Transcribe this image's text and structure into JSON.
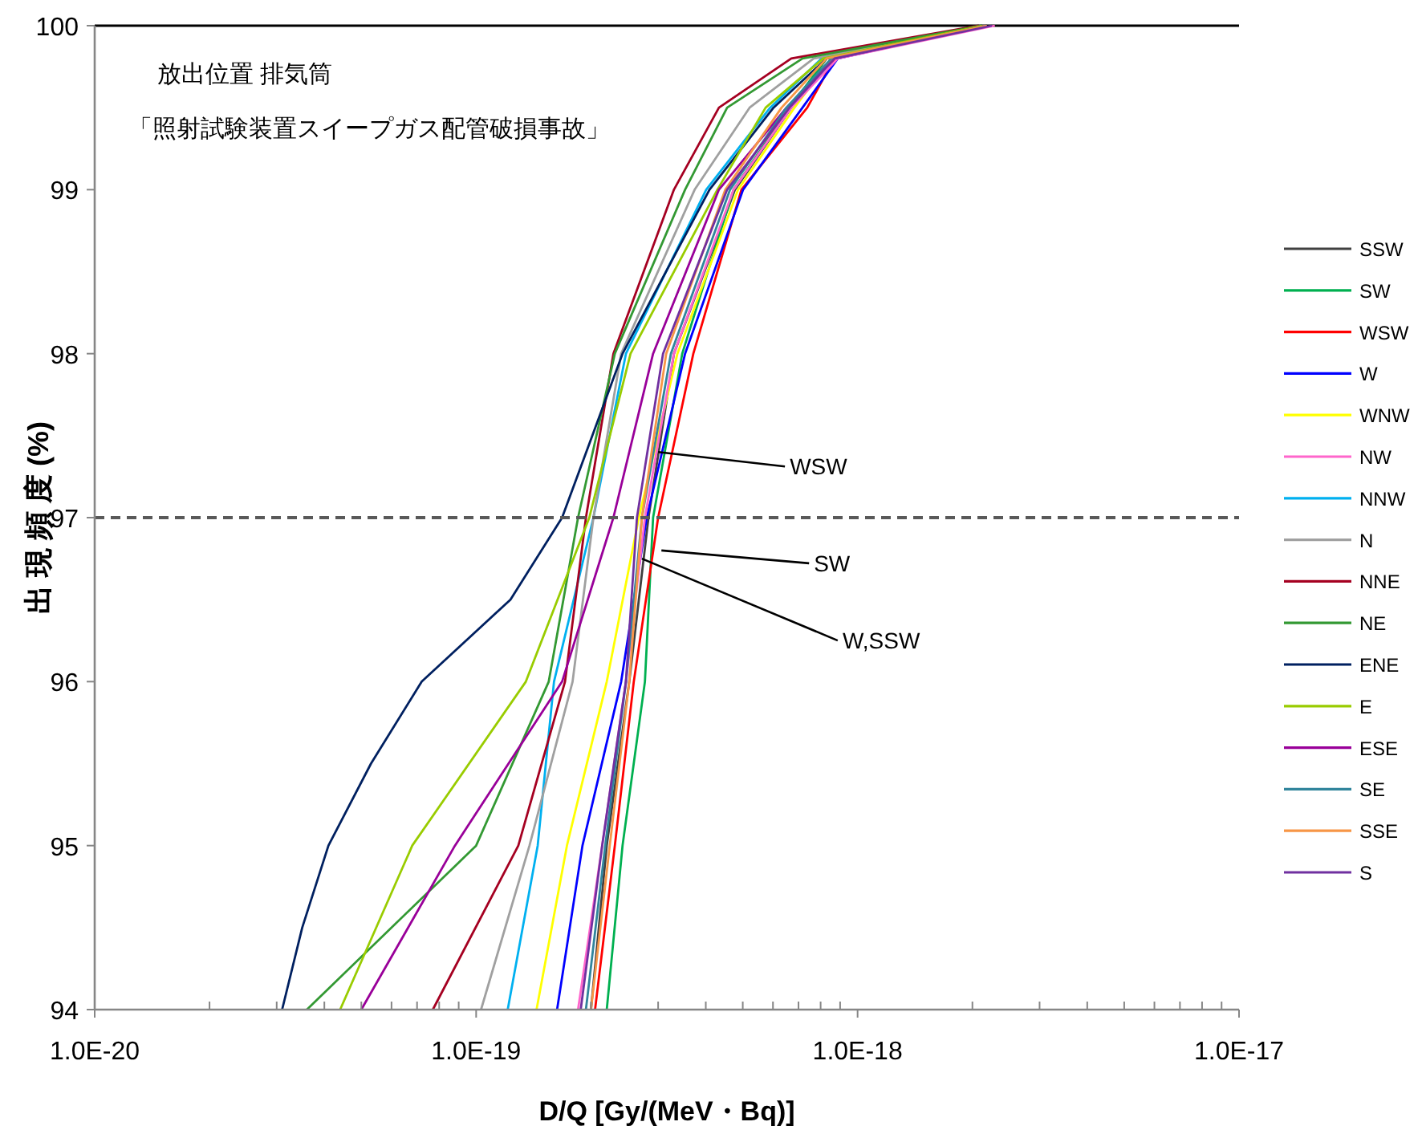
{
  "chart_data": {
    "type": "line",
    "xlabel": "D/Q [Gy/(MeV・Bq)]",
    "ylabel": "出 現 頻 度 (%)",
    "log": "x",
    "xlim": [
      1e-20,
      1e-17
    ],
    "ylim": [
      94,
      100
    ],
    "xticks": [
      {
        "value": 1e-20,
        "label": "1.0E-20"
      },
      {
        "value": 1e-19,
        "label": "1.0E-19"
      },
      {
        "value": 1e-18,
        "label": "1.0E-18"
      },
      {
        "value": 1e-17,
        "label": "1.0E-17"
      }
    ],
    "yticks": [
      94,
      95,
      96,
      97,
      98,
      99,
      100
    ],
    "grid": false,
    "legend": "right",
    "marker": "none",
    "line_style": "solid",
    "ref_lines": [
      {
        "axis": "y",
        "value": 97,
        "color": "#595959",
        "line_style": "dashed"
      }
    ],
    "annotations": [
      "放出位置  排気筒",
      "「照射試験装置スイープガス配管破損事故」",
      {
        "text": "WSW",
        "x": 3e-19,
        "y": 97.4
      },
      {
        "text": "SW",
        "x": 3.06e-19,
        "y": 96.8
      },
      {
        "text": "W,SSW",
        "x": 2.72e-19,
        "y": 96.75
      }
    ],
    "series": [
      {
        "name": "SSW",
        "color": "#404040",
        "x": [
          2e-19,
          2.2e-19,
          2.52e-19,
          2.83e-19,
          3.3e-19,
          4.77e-19,
          6.7e-19,
          8.29e-19,
          2.18e-18
        ],
        "values": [
          94,
          95,
          96,
          97,
          98,
          99,
          99.5,
          99.8,
          100
        ]
      },
      {
        "name": "SW",
        "color": "#00b050",
        "x": [
          2.2e-19,
          2.42e-19,
          2.77e-19,
          2.91e-19,
          3.47e-19,
          4.73e-19,
          6.63e-19,
          8.29e-19,
          2.18e-18
        ],
        "values": [
          94,
          95,
          96,
          97,
          98,
          99,
          99.5,
          99.8,
          100
        ]
      },
      {
        "name": "WSW",
        "color": "#ff0000",
        "x": [
          2.05e-19,
          2.31e-19,
          2.59e-19,
          3e-19,
          3.71e-19,
          4.96e-19,
          7.38e-19,
          8.7e-19,
          2.18e-18
        ],
        "values": [
          94,
          95,
          96,
          97,
          98,
          99,
          99.5,
          99.8,
          100
        ]
      },
      {
        "name": "W",
        "color": "#0000ff",
        "x": [
          1.63e-19,
          1.9e-19,
          2.4e-19,
          2.8e-19,
          3.53e-19,
          5.01e-19,
          7.17e-19,
          8.87e-19,
          2.18e-18
        ],
        "values": [
          94,
          95,
          96,
          97,
          98,
          99,
          99.5,
          99.8,
          100
        ]
      },
      {
        "name": "WNW",
        "color": "#ffff00",
        "x": [
          1.44e-19,
          1.73e-19,
          2.2e-19,
          2.67e-19,
          3.37e-19,
          4.86e-19,
          6.83e-19,
          8.53e-19,
          2.18e-18
        ],
        "values": [
          94,
          95,
          96,
          97,
          98,
          99,
          99.5,
          99.8,
          100
        ]
      },
      {
        "name": "NW",
        "color": "#ff66cc",
        "x": [
          1.85e-19,
          2.14e-19,
          2.47e-19,
          2.77e-19,
          3.3e-19,
          4.73e-19,
          6.7e-19,
          8.87e-19,
          2.29e-18
        ],
        "values": [
          94,
          95,
          96,
          97,
          98,
          99,
          99.5,
          99.8,
          100
        ]
      },
      {
        "name": "NNW",
        "color": "#00b0f0",
        "x": [
          1.21e-19,
          1.45e-19,
          1.6e-19,
          2.03e-19,
          2.47e-19,
          4.01e-19,
          5.9e-19,
          8.05e-19,
          2.12e-18
        ],
        "values": [
          94,
          95,
          96,
          97,
          98,
          99,
          99.5,
          99.8,
          100
        ]
      },
      {
        "name": "N",
        "color": "#a0a0a0",
        "x": [
          1.03e-19,
          1.38e-19,
          1.79e-19,
          2.03e-19,
          2.4e-19,
          3.74e-19,
          5.21e-19,
          7.67e-19,
          2.12e-18
        ],
        "values": [
          94,
          95,
          96,
          97,
          98,
          99,
          99.5,
          99.8,
          100
        ]
      },
      {
        "name": "NNE",
        "color": "#a50021",
        "x": [
          7.7e-20,
          1.29e-19,
          1.71e-19,
          1.94e-19,
          2.29e-19,
          3.3e-19,
          4.33e-19,
          6.7e-19,
          2.08e-18
        ],
        "values": [
          94,
          95,
          96,
          97,
          98,
          99,
          99.5,
          99.8,
          100
        ]
      },
      {
        "name": "NE",
        "color": "#339933",
        "x": [
          3.6e-20,
          1e-19,
          1.55e-19,
          1.85e-19,
          2.31e-19,
          3.53e-19,
          4.55e-19,
          7.17e-19,
          2.12e-18
        ],
        "values": [
          94,
          95,
          96,
          97,
          98,
          99,
          99.5,
          99.8,
          100
        ]
      },
      {
        "name": "ENE",
        "color": "#002060",
        "x": [
          3.1e-20,
          3.5e-20,
          4.1e-20,
          5.3e-20,
          7.2e-20,
          1.23e-19,
          1.68e-19,
          2.42e-19,
          4.09e-19,
          6.02e-19,
          8.29e-19,
          2.12e-18
        ],
        "values": [
          94,
          94.5,
          95,
          95.5,
          96,
          96.5,
          97,
          98,
          99,
          99.5,
          99.8,
          100
        ]
      },
      {
        "name": "E",
        "color": "#99cc00",
        "x": [
          4.4e-20,
          6.8e-20,
          1.35e-19,
          1.98e-19,
          2.54e-19,
          4.29e-19,
          5.74e-19,
          8.13e-19,
          2.12e-18
        ],
        "values": [
          94,
          95,
          96,
          97,
          98,
          99,
          99.5,
          99.8,
          100
        ]
      },
      {
        "name": "ESE",
        "color": "#990099",
        "x": [
          5e-20,
          8.8e-20,
          1.68e-19,
          2.29e-19,
          2.91e-19,
          4.33e-19,
          6.51e-19,
          8.7e-19,
          2.18e-18
        ],
        "values": [
          94,
          95,
          96,
          97,
          98,
          99,
          99.5,
          99.8,
          100
        ]
      },
      {
        "name": "SE",
        "color": "#31859c",
        "x": [
          1.94e-19,
          2.18e-19,
          2.47e-19,
          2.72e-19,
          3.24e-19,
          4.63e-19,
          6.51e-19,
          8.53e-19,
          2.18e-18
        ],
        "values": [
          94,
          95,
          96,
          97,
          98,
          99,
          99.5,
          99.8,
          100
        ]
      },
      {
        "name": "SSE",
        "color": "#f79646",
        "x": [
          2e-19,
          2.24e-19,
          2.52e-19,
          2.72e-19,
          3.15e-19,
          4.5e-19,
          6.32e-19,
          8.29e-19,
          2.18e-18
        ],
        "values": [
          94,
          95,
          96,
          97,
          98,
          99,
          99.5,
          99.8,
          100
        ]
      },
      {
        "name": "S",
        "color": "#7030a0",
        "x": [
          1.88e-19,
          2.14e-19,
          2.47e-19,
          2.64e-19,
          3.09e-19,
          4.55e-19,
          6.63e-19,
          8.7e-19,
          2.25e-18
        ],
        "values": [
          94,
          95,
          96,
          97,
          98,
          99,
          99.5,
          99.8,
          100
        ]
      }
    ]
  }
}
